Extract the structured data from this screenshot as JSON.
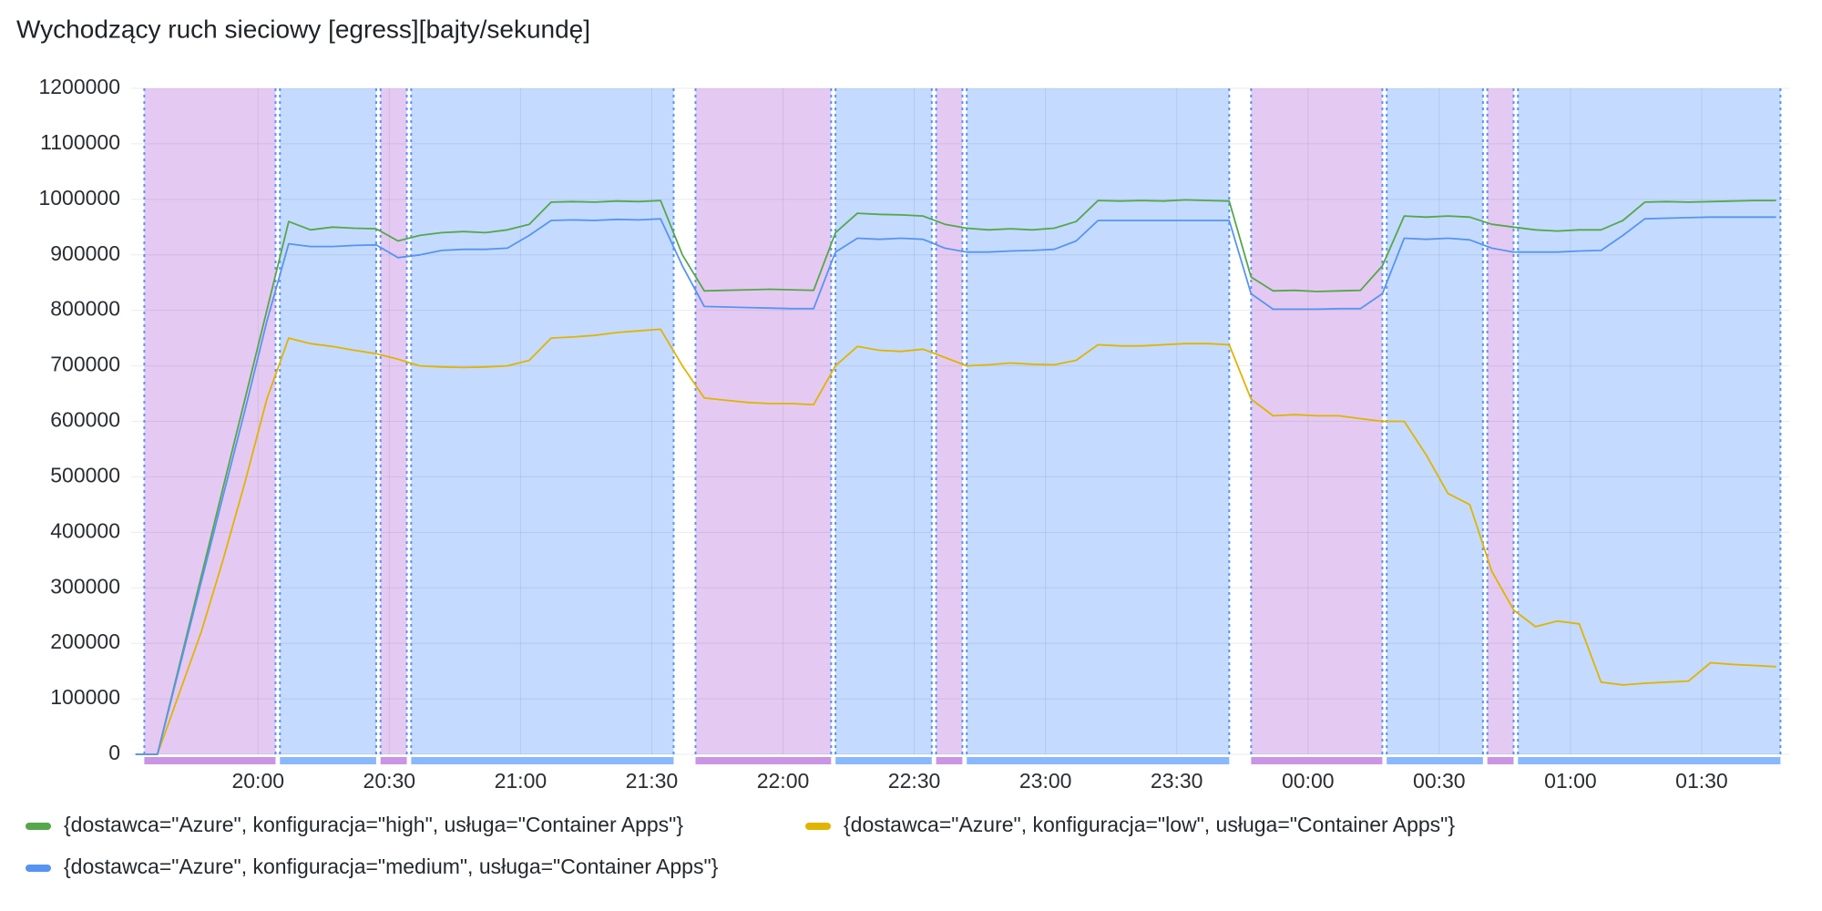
{
  "chart_data": {
    "type": "line",
    "title": "Wychodzący ruch sieciowy [egress][bajty/sekundę]",
    "x": [
      "19:32",
      "19:37",
      "19:42",
      "19:47",
      "19:52",
      "19:57",
      "20:02",
      "20:07",
      "20:12",
      "20:17",
      "20:22",
      "20:27",
      "20:32",
      "20:37",
      "20:42",
      "20:47",
      "20:52",
      "20:57",
      "21:02",
      "21:07",
      "21:12",
      "21:17",
      "21:22",
      "21:27",
      "21:32",
      "21:37",
      "21:42",
      "21:47",
      "21:52",
      "21:57",
      "22:02",
      "22:07",
      "22:12",
      "22:17",
      "22:22",
      "22:27",
      "22:32",
      "22:37",
      "22:42",
      "22:47",
      "22:52",
      "22:57",
      "23:02",
      "23:07",
      "23:12",
      "23:17",
      "23:22",
      "23:27",
      "23:32",
      "23:37",
      "23:42",
      "23:47",
      "23:52",
      "23:57",
      "00:02",
      "00:07",
      "00:12",
      "00:17",
      "00:22",
      "00:27",
      "00:32",
      "00:37",
      "00:42",
      "00:47",
      "00:52",
      "00:57",
      "01:02",
      "01:07",
      "01:12",
      "01:17",
      "01:22",
      "01:27",
      "01:32",
      "01:37",
      "01:42",
      "01:47"
    ],
    "series": [
      {
        "name": "{dostawca=\"Azure\", konfiguracja=\"high\", usługa=\"Container Apps\"}",
        "color": "#56a64b",
        "values": [
          0,
          0,
          160000,
          320000,
          480000,
          640000,
          800000,
          960000,
          945000,
          950000,
          948000,
          947000,
          925000,
          935000,
          940000,
          942000,
          940000,
          945000,
          955000,
          995000,
          996000,
          995000,
          997000,
          996000,
          998000,
          900000,
          835000,
          836000,
          837000,
          838000,
          837000,
          836000,
          940000,
          975000,
          973000,
          972000,
          970000,
          955000,
          948000,
          945000,
          947000,
          945000,
          948000,
          960000,
          998000,
          997000,
          998000,
          997000,
          999000,
          998000,
          997000,
          860000,
          835000,
          836000,
          834000,
          835000,
          836000,
          880000,
          970000,
          968000,
          970000,
          968000,
          955000,
          950000,
          945000,
          943000,
          945000,
          945000,
          962000,
          995000,
          996000,
          995000,
          996000,
          997000,
          998000,
          998000
        ]
      },
      {
        "name": "{dostawca=\"Azure\", konfiguracja=\"low\", usługa=\"Container Apps\"}",
        "color": "#e0b400",
        "values": [
          0,
          0,
          110000,
          220000,
          350000,
          490000,
          640000,
          750000,
          740000,
          735000,
          728000,
          722000,
          712000,
          700000,
          698000,
          697000,
          698000,
          700000,
          710000,
          750000,
          752000,
          755000,
          760000,
          763000,
          766000,
          700000,
          642000,
          638000,
          634000,
          632000,
          632000,
          630000,
          700000,
          735000,
          728000,
          726000,
          730000,
          715000,
          700000,
          702000,
          705000,
          703000,
          702000,
          710000,
          738000,
          736000,
          736000,
          738000,
          740000,
          740000,
          738000,
          640000,
          610000,
          612000,
          610000,
          610000,
          605000,
          600000,
          600000,
          540000,
          470000,
          450000,
          330000,
          260000,
          230000,
          240000,
          235000,
          130000,
          125000,
          128000,
          130000,
          132000,
          165000,
          162000,
          160000,
          158000
        ]
      },
      {
        "name": "{dostawca=\"Azure\", konfiguracja=\"medium\", usługa=\"Container Apps\"}",
        "color": "#5794f2",
        "values": [
          0,
          0,
          155000,
          310000,
          465000,
          620000,
          780000,
          920000,
          915000,
          915000,
          917000,
          918000,
          895000,
          900000,
          908000,
          910000,
          910000,
          912000,
          935000,
          962000,
          963000,
          962000,
          964000,
          963000,
          965000,
          880000,
          807000,
          806000,
          805000,
          804000,
          803000,
          803000,
          905000,
          930000,
          928000,
          930000,
          928000,
          912000,
          905000,
          905000,
          907000,
          908000,
          910000,
          925000,
          962000,
          962000,
          962000,
          962000,
          962000,
          962000,
          962000,
          830000,
          802000,
          802000,
          802000,
          803000,
          803000,
          830000,
          930000,
          928000,
          930000,
          927000,
          912000,
          905000,
          905000,
          905000,
          907000,
          908000,
          935000,
          965000,
          966000,
          967000,
          968000,
          968000,
          968000,
          968000
        ]
      }
    ],
    "annotations": [
      {
        "start": "19:34",
        "end": "20:04",
        "color": "#ca95e5"
      },
      {
        "start": "20:05",
        "end": "20:27",
        "color": "#8ab8ff"
      },
      {
        "start": "20:28",
        "end": "20:34",
        "color": "#ca95e5"
      },
      {
        "start": "20:35",
        "end": "21:35",
        "color": "#8ab8ff"
      },
      {
        "start": "21:40",
        "end": "22:11",
        "color": "#ca95e5"
      },
      {
        "start": "22:12",
        "end": "22:34",
        "color": "#8ab8ff"
      },
      {
        "start": "22:35",
        "end": "22:41",
        "color": "#ca95e5"
      },
      {
        "start": "22:42",
        "end": "23:42",
        "color": "#8ab8ff"
      },
      {
        "start": "23:47",
        "end": "00:17",
        "color": "#ca95e5"
      },
      {
        "start": "00:18",
        "end": "00:40",
        "color": "#8ab8ff"
      },
      {
        "start": "00:41",
        "end": "00:47",
        "color": "#ca95e5"
      },
      {
        "start": "00:48",
        "end": "01:48",
        "color": "#8ab8ff"
      }
    ],
    "xlim": [
      "19:31",
      "01:50"
    ],
    "xticks": [
      "20:00",
      "20:30",
      "21:00",
      "21:30",
      "22:00",
      "22:30",
      "23:00",
      "23:30",
      "00:00",
      "00:30",
      "01:00",
      "01:30"
    ],
    "ylim": [
      0,
      1200000
    ],
    "yticks": [
      0,
      100000,
      200000,
      300000,
      400000,
      500000,
      600000,
      700000,
      800000,
      900000,
      1000000,
      1100000,
      1200000
    ],
    "grid": true,
    "legend": "bottom"
  }
}
